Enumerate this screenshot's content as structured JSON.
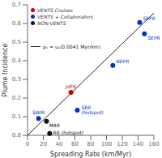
{
  "chart_data": {
    "type": "scatter",
    "xlabel": "Spreading Rate (km/Myr)",
    "ylabel": "Plume Incidence",
    "xlim": [
      0,
      160
    ],
    "ylim": [
      0,
      0.7
    ],
    "xticks": [
      0,
      20,
      40,
      60,
      80,
      100,
      120,
      140,
      160
    ],
    "yticks": [
      {
        "value": 0,
        "label": "0.0"
      },
      0.1,
      0.2,
      0.3,
      0.4,
      0.5,
      0.6,
      0.7
    ],
    "grid": false,
    "legend": "upper left",
    "series": [
      {
        "name": "VENTS Cruises",
        "color": "#cc0000",
        "x": [
          55
        ],
        "y": [
          0.23
        ],
        "labels": [
          "JdFR"
        ]
      },
      {
        "name": "VENTS + Collaborators",
        "color": "#0033cc",
        "x": [
          14,
          63,
          108,
          142,
          148
        ],
        "y": [
          0.09,
          0.135,
          0.375,
          0.605,
          0.545
        ],
        "labels": [
          "SWIR",
          "SER\n(hotspot)",
          "NEPR",
          "SEPR",
          "SEPR"
        ]
      },
      {
        "name": "NON-VENTS",
        "color": "#111111",
        "x": [
          24,
          28
        ],
        "y": [
          0.075,
          0.01
        ],
        "labels": [
          "MAR",
          "RR (hotspot)"
        ]
      },
      {
        "type": "line",
        "color": "#222222",
        "x": [
          0,
          160
        ],
        "y": [
          0,
          0.656
        ]
      }
    ],
    "annotation": "pₛ = uₛ(0.0041 Myr/km)"
  }
}
